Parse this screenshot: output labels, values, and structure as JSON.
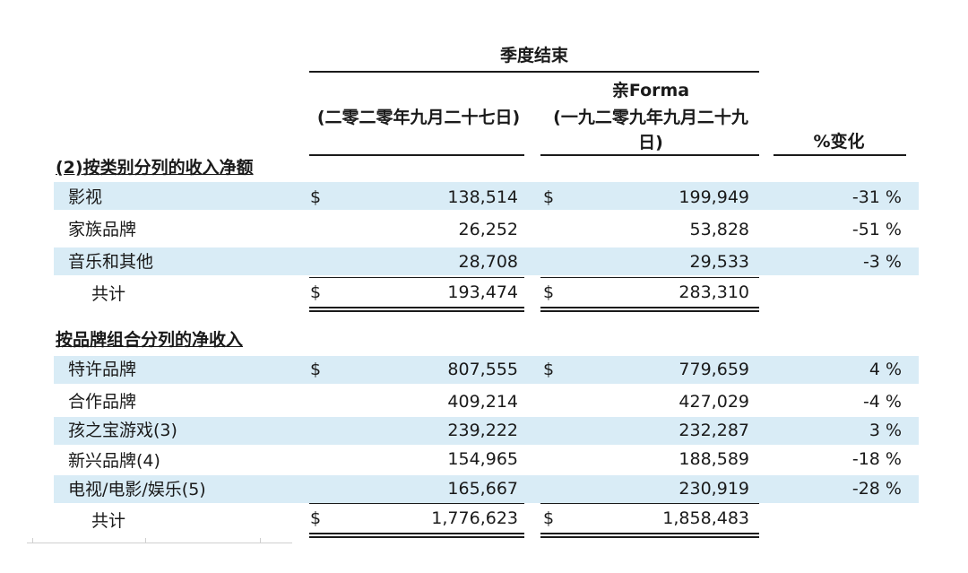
{
  "header": {
    "group_title": "季度结束",
    "col1": "(二零二零年九月二十七日)",
    "col2_line1": "亲Forma",
    "col2_line2": "(一九二零九年九月二十九日)",
    "col3": "%变化"
  },
  "section1": {
    "title": "(2)按类别分列的收入净额",
    "rows": [
      {
        "label": "影视",
        "cur1": "$",
        "v1": "138,514",
        "cur2": "$",
        "v2": "199,949",
        "pct": "-31 %"
      },
      {
        "label": "家族品牌",
        "cur1": "",
        "v1": "26,252",
        "cur2": "",
        "v2": "53,828",
        "pct": "-51 %"
      },
      {
        "label": "音乐和其他",
        "cur1": "",
        "v1": "28,708",
        "cur2": "",
        "v2": "29,533",
        "pct": "-3 %"
      }
    ],
    "total": {
      "label": "共计",
      "cur1": "$",
      "v1": "193,474",
      "cur2": "$",
      "v2": "283,310"
    }
  },
  "section2": {
    "title": "按品牌组合分列的净收入",
    "rows": [
      {
        "label": "特许品牌",
        "cur1": "$",
        "v1": "807,555",
        "cur2": "$",
        "v2": "779,659",
        "pct": "4 %"
      },
      {
        "label": "合作品牌",
        "cur1": "",
        "v1": "409,214",
        "cur2": "",
        "v2": "427,029",
        "pct": "-4 %"
      },
      {
        "label": "孩之宝游戏(3)",
        "cur1": "",
        "v1": "239,222",
        "cur2": "",
        "v2": "232,287",
        "pct": "3 %"
      },
      {
        "label": "新兴品牌(4)",
        "cur1": "",
        "v1": "154,965",
        "cur2": "",
        "v2": "188,589",
        "pct": "-18 %"
      },
      {
        "label": "电视/电影/娱乐(5)",
        "cur1": "",
        "v1": "165,667",
        "cur2": "",
        "v2": "230,919",
        "pct": "-28 %"
      }
    ],
    "total": {
      "label": "共计",
      "cur1": "$",
      "v1": "1,776,623",
      "cur2": "$",
      "v2": "1,858,483"
    }
  }
}
